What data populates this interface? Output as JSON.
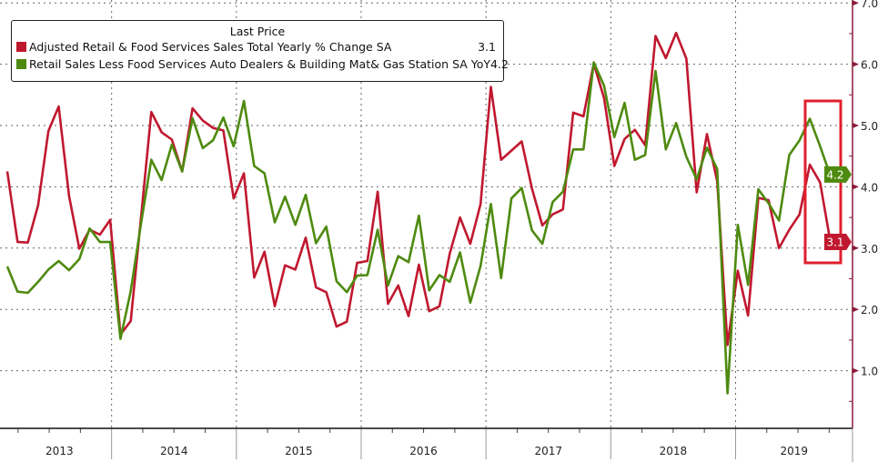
{
  "chart_data": {
    "type": "line",
    "legend_title": "Last Price",
    "legend_placement": "top-left",
    "grid": true,
    "ylim": [
      0.05,
      7.0
    ],
    "y_ticks": [
      "1.0",
      "2.0",
      "3.0",
      "4.0",
      "5.0",
      "6.0",
      "7.0"
    ],
    "y_axis_side": "right",
    "x_tick_labels": [
      "2013",
      "2014",
      "2015",
      "2016",
      "2017",
      "2018",
      "2019"
    ],
    "x": [
      "2013-02",
      "2013-03",
      "2013-04",
      "2013-05",
      "2013-06",
      "2013-07",
      "2013-08",
      "2013-09",
      "2013-10",
      "2013-11",
      "2013-12",
      "2014-01",
      "2014-02",
      "2014-03",
      "2014-04",
      "2014-05",
      "2014-06",
      "2014-07",
      "2014-08",
      "2014-09",
      "2014-10",
      "2014-11",
      "2014-12",
      "2015-01",
      "2015-02",
      "2015-03",
      "2015-04",
      "2015-05",
      "2015-06",
      "2015-07",
      "2015-08",
      "2015-09",
      "2015-10",
      "2015-11",
      "2015-12",
      "2016-01",
      "2016-02",
      "2016-03",
      "2016-04",
      "2016-05",
      "2016-06",
      "2016-07",
      "2016-08",
      "2016-09",
      "2016-10",
      "2016-11",
      "2016-12",
      "2017-01",
      "2017-02",
      "2017-03",
      "2017-04",
      "2017-05",
      "2017-06",
      "2017-07",
      "2017-08",
      "2017-09",
      "2017-10",
      "2017-11",
      "2017-12",
      "2018-01",
      "2018-02",
      "2018-03",
      "2018-04",
      "2018-05",
      "2018-06",
      "2018-07",
      "2018-08",
      "2018-09",
      "2018-10",
      "2018-11",
      "2018-12",
      "2019-01",
      "2019-02",
      "2019-03",
      "2019-04",
      "2019-05",
      "2019-06",
      "2019-07",
      "2019-08",
      "2019-09",
      "2019-10"
    ],
    "series": [
      {
        "name": "Adjusted Retail & Food Services Sales Total Yearly % Change SA",
        "last": "3.1",
        "color": "#c0182f",
        "values": [
          4.25,
          3.1,
          3.09,
          3.7,
          4.91,
          5.31,
          3.85,
          2.99,
          3.3,
          3.22,
          3.46,
          1.59,
          1.81,
          3.5,
          5.22,
          4.89,
          4.77,
          4.25,
          5.28,
          5.08,
          4.96,
          4.92,
          3.81,
          4.22,
          2.52,
          2.94,
          2.05,
          2.72,
          2.65,
          3.17,
          2.36,
          2.28,
          1.72,
          1.8,
          2.76,
          2.79,
          3.92,
          2.09,
          2.39,
          1.89,
          2.73,
          1.97,
          2.05,
          2.91,
          3.5,
          3.07,
          3.72,
          5.63,
          4.44,
          4.59,
          4.74,
          3.97,
          3.37,
          3.55,
          3.63,
          5.21,
          5.15,
          6.01,
          5.45,
          4.34,
          4.78,
          4.93,
          4.68,
          6.46,
          6.1,
          6.51,
          6.09,
          3.91,
          4.86,
          4.09,
          1.42,
          2.63,
          1.9,
          3.82,
          3.78,
          3.0,
          3.3,
          3.55,
          4.36,
          4.07,
          3.1
        ]
      },
      {
        "name": "Retail Sales Less Food Services Auto Dealers & Building Mat& Gas Station SA YoY",
        "last": "4.2",
        "color": "#4e8a0f",
        "values": [
          2.7,
          2.29,
          2.27,
          2.45,
          2.65,
          2.79,
          2.64,
          2.82,
          3.32,
          3.1,
          3.1,
          1.52,
          2.3,
          3.4,
          4.44,
          4.11,
          4.69,
          4.25,
          5.12,
          4.63,
          4.76,
          5.13,
          4.66,
          5.4,
          4.34,
          4.22,
          3.42,
          3.84,
          3.38,
          3.87,
          3.08,
          3.35,
          2.46,
          2.28,
          2.55,
          2.56,
          3.3,
          2.39,
          2.87,
          2.77,
          3.53,
          2.31,
          2.56,
          2.45,
          2.93,
          2.11,
          2.71,
          3.72,
          2.51,
          3.81,
          3.98,
          3.29,
          3.07,
          3.75,
          3.92,
          4.61,
          4.61,
          6.03,
          5.65,
          4.81,
          5.37,
          4.44,
          4.52,
          5.89,
          4.61,
          5.04,
          4.49,
          4.12,
          4.64,
          4.29,
          0.63,
          3.38,
          2.4,
          3.96,
          3.73,
          3.45,
          4.52,
          4.76,
          5.11,
          4.66,
          4.18
        ]
      }
    ],
    "highlight_box_color": "#e0202e",
    "axis_color": "#8a1c3a"
  }
}
